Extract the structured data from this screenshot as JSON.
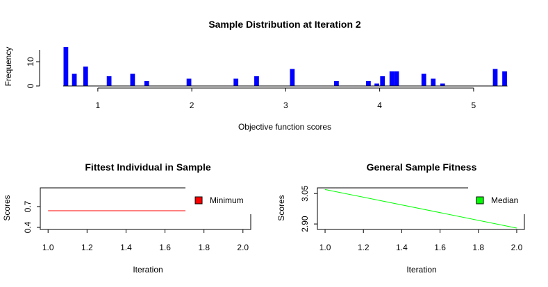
{
  "chart_data": [
    {
      "type": "bar",
      "title": "Sample Distribution at Iteration 2",
      "xlabel": "Objective function scores",
      "ylabel": "Frequency",
      "xlim": [
        0.55,
        5.4
      ],
      "ylim": [
        0,
        16
      ],
      "x_ticks": [
        1,
        2,
        3,
        4,
        5
      ],
      "y_ticks": [
        0,
        10
      ],
      "color": "#0000ff",
      "bin_width": 0.05,
      "bins": [
        {
          "x": 0.66,
          "y": 16
        },
        {
          "x": 0.75,
          "y": 5
        },
        {
          "x": 0.87,
          "y": 8
        },
        {
          "x": 1.12,
          "y": 4
        },
        {
          "x": 1.37,
          "y": 5
        },
        {
          "x": 1.52,
          "y": 2
        },
        {
          "x": 1.97,
          "y": 3
        },
        {
          "x": 2.47,
          "y": 3
        },
        {
          "x": 2.69,
          "y": 4
        },
        {
          "x": 3.07,
          "y": 7
        },
        {
          "x": 3.54,
          "y": 2
        },
        {
          "x": 3.88,
          "y": 2
        },
        {
          "x": 3.97,
          "y": 1
        },
        {
          "x": 4.03,
          "y": 4
        },
        {
          "x": 4.13,
          "y": 6
        },
        {
          "x": 4.18,
          "y": 6
        },
        {
          "x": 4.47,
          "y": 5
        },
        {
          "x": 4.57,
          "y": 3
        },
        {
          "x": 4.67,
          "y": 1
        },
        {
          "x": 5.23,
          "y": 7
        },
        {
          "x": 5.33,
          "y": 6
        }
      ]
    },
    {
      "type": "line",
      "title": "Fittest Individual in Sample",
      "xlabel": "Iteration",
      "ylabel": "Scores",
      "xlim": [
        0.96,
        2.04
      ],
      "ylim": [
        0.37,
        0.97
      ],
      "x_ticks": [
        "1.0",
        "1.2",
        "1.4",
        "1.6",
        "1.8",
        "2.0"
      ],
      "y_ticks": [
        "0.4",
        "0.7"
      ],
      "legend_position": "top-right",
      "series": [
        {
          "name": "Minimum",
          "color": "#ff0000",
          "x": [
            1,
            2
          ],
          "y": [
            0.64,
            0.64
          ]
        }
      ]
    },
    {
      "type": "line",
      "title": "General Sample Fitness",
      "xlabel": "Iteration",
      "ylabel": "Scores",
      "xlim": [
        0.96,
        2.04
      ],
      "ylim": [
        2.873,
        3.078
      ],
      "x_ticks": [
        "1.0",
        "1.2",
        "1.4",
        "1.6",
        "1.8",
        "2.0"
      ],
      "y_ticks": [
        "2.90",
        "3.05"
      ],
      "legend_position": "top-right",
      "series": [
        {
          "name": "Median",
          "color": "#00ff00",
          "x": [
            1,
            2
          ],
          "y": [
            3.07,
            2.88
          ]
        }
      ]
    }
  ]
}
